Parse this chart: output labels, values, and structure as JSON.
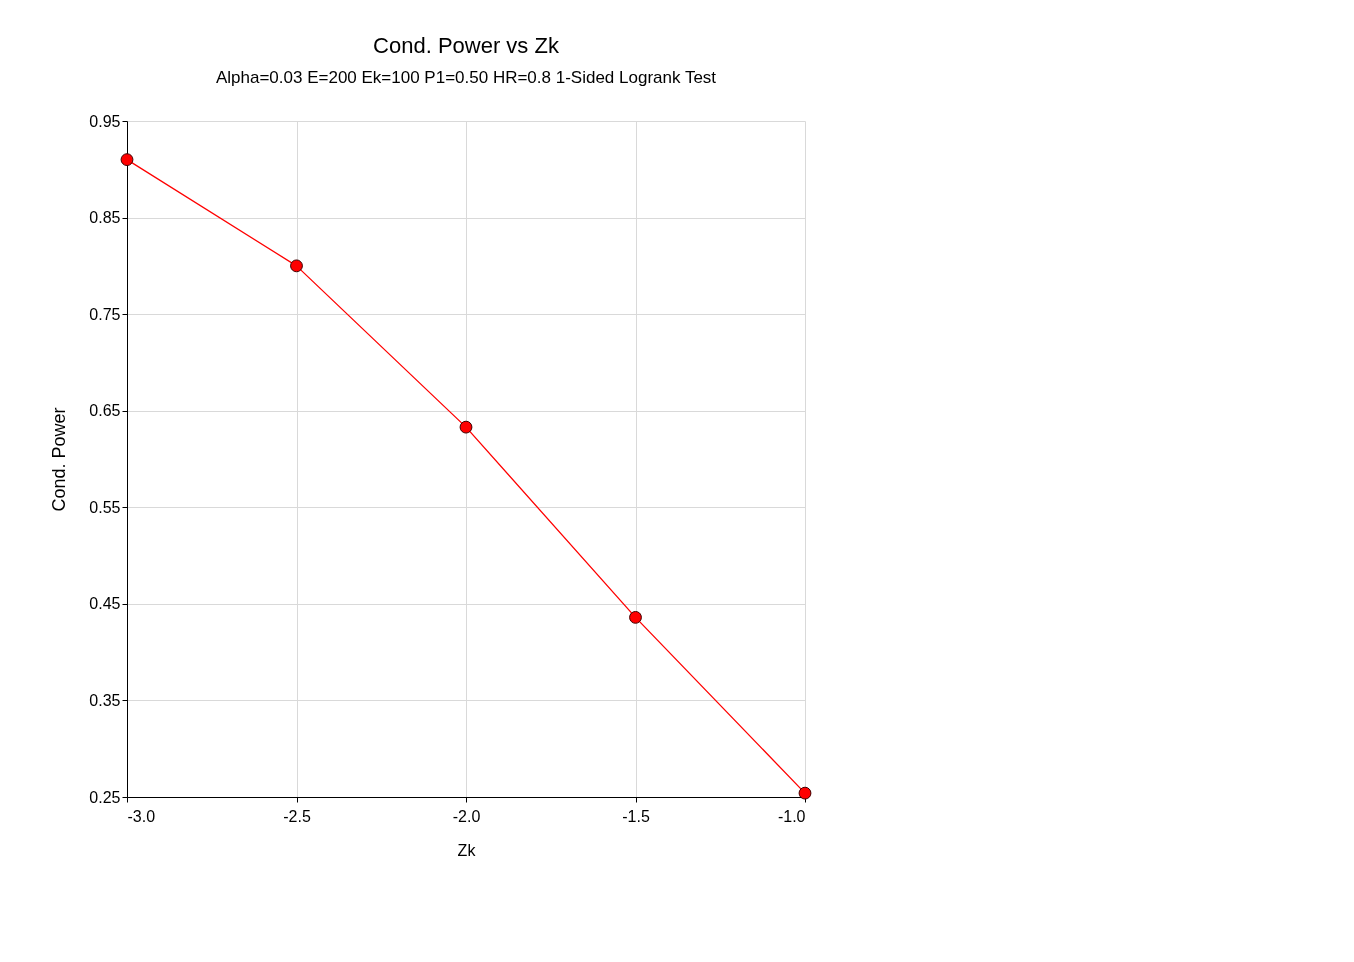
{
  "chart_data": {
    "type": "line",
    "title": "Cond. Power vs Zk",
    "subtitle": "Alpha=0.03 E=200 Ek=100 P1=0.50 HR=0.8 1-Sided Logrank Test",
    "xlabel": "Zk",
    "ylabel": "Cond. Power",
    "x": [
      -3.0,
      -2.5,
      -2.0,
      -1.5,
      -1.0
    ],
    "series": [
      {
        "color": "#ff0000",
        "values": [
          0.91,
          0.8,
          0.633,
          0.436,
          0.254
        ]
      }
    ],
    "xlim": [
      -3.0,
      -1.0
    ],
    "xticks": [
      {
        "value": -3.0,
        "label": "-3.0"
      },
      {
        "value": -2.5,
        "label": "-2.5"
      },
      {
        "value": -2.0,
        "label": "-2.0"
      },
      {
        "value": -1.5,
        "label": "-1.5"
      },
      {
        "value": -1.0,
        "label": "-1.0"
      }
    ],
    "ylim": [
      0.25,
      0.95
    ],
    "yticks": [
      0.25,
      0.35,
      0.45,
      0.55,
      0.65,
      0.75,
      0.85,
      0.95
    ],
    "grid": true,
    "marker": "circle",
    "line_style": "solid"
  }
}
